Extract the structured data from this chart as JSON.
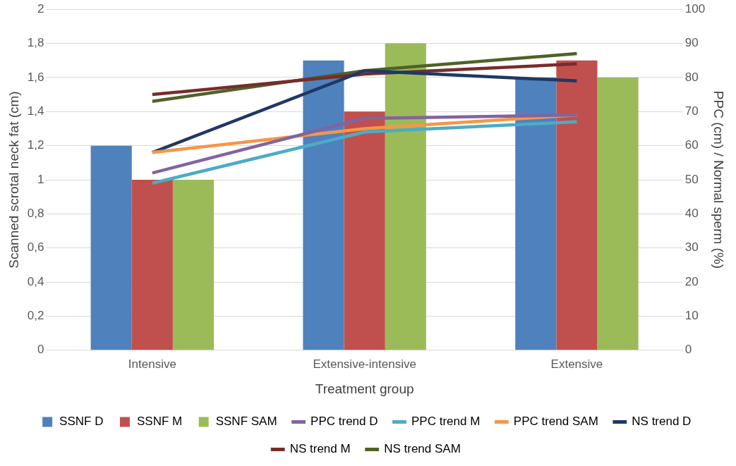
{
  "chart_data": {
    "type": "bar",
    "xlabel": "Treatment group",
    "ylabel": "Scanned scrotal neck fat (cm)",
    "y2label": "PPC (cm) / Normal sperm (%)",
    "categories": [
      "Intensive",
      "Extensive-intensive",
      "Extensive"
    ],
    "ylim": [
      0,
      2
    ],
    "yticks": [
      0,
      {
        "value": 0.2,
        "label": "0,2"
      },
      {
        "value": 0.4,
        "label": "0,4"
      },
      {
        "value": 0.6,
        "label": "0,6"
      },
      {
        "value": 0.8,
        "label": "0,8"
      },
      1,
      {
        "value": 1.2,
        "label": "1,2"
      },
      {
        "value": 1.4,
        "label": "1,4"
      },
      {
        "value": 1.6,
        "label": "1,6"
      },
      {
        "value": 1.8,
        "label": "1,8"
      },
      2
    ],
    "y2lim": [
      0,
      100
    ],
    "y2ticks": [
      0,
      10,
      20,
      30,
      40,
      50,
      60,
      70,
      80,
      90,
      100
    ],
    "grid": "y",
    "legend": "bottom",
    "series": [
      {
        "name": "SSNF D",
        "color": "#4f81bd",
        "values": [
          1.2,
          1.7,
          1.6
        ]
      },
      {
        "name": "SSNF M",
        "color": "#c0504d",
        "values": [
          1,
          1.4,
          1.7
        ]
      },
      {
        "name": "SSNF SAM",
        "color": "#9bbb59",
        "values": [
          1,
          1.8,
          1.6
        ]
      },
      {
        "name": "PPC trend D",
        "type": "line",
        "axis": "y2",
        "color": "#8064a2",
        "values": [
          52,
          68,
          69
        ]
      },
      {
        "name": "PPC trend M",
        "type": "line",
        "axis": "y2",
        "color": "#4bacc6",
        "values": [
          49,
          64,
          67
        ]
      },
      {
        "name": "PPC trend SAM",
        "type": "line",
        "axis": "y2",
        "color": "#f79646",
        "values": [
          58,
          65,
          69
        ]
      },
      {
        "name": "NS trend D",
        "type": "line",
        "axis": "y2",
        "color": "#1f3864",
        "values": [
          58,
          82,
          79
        ]
      },
      {
        "name": "NS trend M",
        "type": "line",
        "axis": "y2",
        "color": "#772c2a",
        "values": [
          75,
          81,
          84
        ]
      },
      {
        "name": "NS trend SAM",
        "type": "line",
        "axis": "y2",
        "color": "#4f6228",
        "values": [
          73,
          82,
          87
        ]
      }
    ]
  }
}
